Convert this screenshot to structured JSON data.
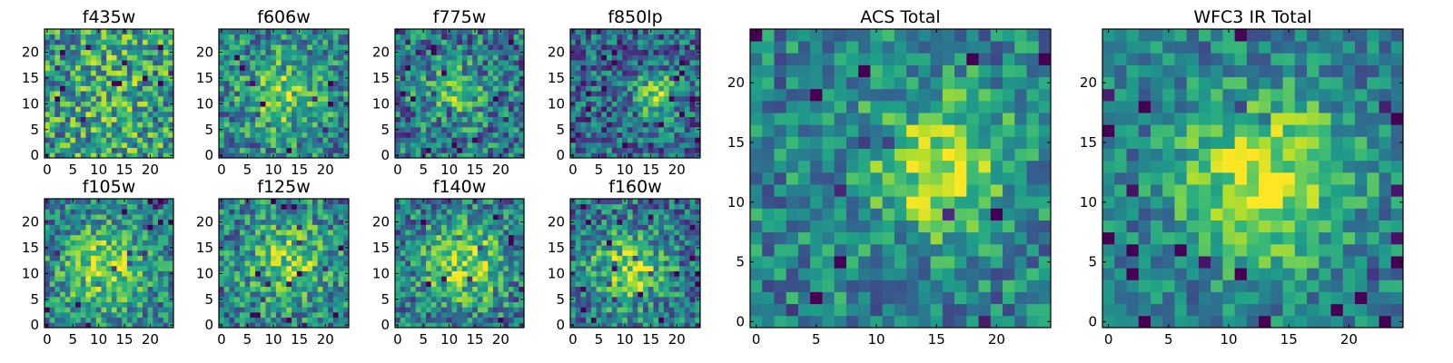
{
  "figure": {
    "colormap": "viridis"
  },
  "chart_data": [
    {
      "type": "heatmap",
      "title": "f435w",
      "xlim": [
        -0.5,
        24.5
      ],
      "ylim": [
        -0.5,
        24.5
      ],
      "xticks": [
        0,
        5,
        10,
        15,
        20
      ],
      "yticks": [
        0,
        5,
        10,
        15,
        20
      ],
      "grid": false,
      "peak": [
        12,
        12
      ],
      "sigma": 6,
      "amp": 0.1,
      "noise": 0.35,
      "bias": 0.55
    },
    {
      "type": "heatmap",
      "title": "f606w",
      "xlim": [
        -0.5,
        24.5
      ],
      "ylim": [
        -0.5,
        24.5
      ],
      "xticks": [
        0,
        5,
        10,
        15,
        20
      ],
      "yticks": [
        0,
        5,
        10,
        15,
        20
      ],
      "grid": false,
      "peak": [
        12,
        12
      ],
      "sigma": 5,
      "amp": 0.35,
      "noise": 0.3,
      "bias": 0.45
    },
    {
      "type": "heatmap",
      "title": "f775w",
      "xlim": [
        -0.5,
        24.5
      ],
      "ylim": [
        -0.5,
        24.5
      ],
      "xticks": [
        0,
        5,
        10,
        15,
        20
      ],
      "yticks": [
        0,
        5,
        10,
        15,
        20
      ],
      "grid": false,
      "peak": [
        11,
        12
      ],
      "sigma": 4,
      "amp": 0.3,
      "noise": 0.32,
      "bias": 0.4
    },
    {
      "type": "heatmap",
      "title": "f850lp",
      "xlim": [
        -0.5,
        24.5
      ],
      "ylim": [
        -0.5,
        24.5
      ],
      "xticks": [
        0,
        5,
        10,
        15,
        20
      ],
      "yticks": [
        0,
        5,
        10,
        15,
        20
      ],
      "grid": false,
      "peak": [
        16,
        12
      ],
      "sigma": 3,
      "amp": 0.45,
      "noise": 0.3,
      "bias": 0.35
    },
    {
      "type": "heatmap",
      "title": "f105w",
      "xlim": [
        -0.5,
        24.5
      ],
      "ylim": [
        -0.5,
        24.5
      ],
      "xticks": [
        0,
        5,
        10,
        15,
        20
      ],
      "yticks": [
        0,
        5,
        10,
        15,
        20
      ],
      "grid": false,
      "peak": [
        11,
        11
      ],
      "sigma": 6,
      "amp": 0.45,
      "noise": 0.28,
      "bias": 0.4
    },
    {
      "type": "heatmap",
      "title": "f125w",
      "xlim": [
        -0.5,
        24.5
      ],
      "ylim": [
        -0.5,
        24.5
      ],
      "xticks": [
        0,
        5,
        10,
        15,
        20
      ],
      "yticks": [
        0,
        5,
        10,
        15,
        20
      ],
      "grid": false,
      "peak": [
        13,
        12
      ],
      "sigma": 6,
      "amp": 0.35,
      "noise": 0.3,
      "bias": 0.42
    },
    {
      "type": "heatmap",
      "title": "f140w",
      "xlim": [
        -0.5,
        24.5
      ],
      "ylim": [
        -0.5,
        24.5
      ],
      "xticks": [
        0,
        5,
        10,
        15,
        20
      ],
      "yticks": [
        0,
        5,
        10,
        15,
        20
      ],
      "grid": false,
      "peak": [
        13,
        12
      ],
      "sigma": 6,
      "amp": 0.45,
      "noise": 0.3,
      "bias": 0.38
    },
    {
      "type": "heatmap",
      "title": "f160w",
      "xlim": [
        -0.5,
        24.5
      ],
      "ylim": [
        -0.5,
        24.5
      ],
      "xticks": [
        0,
        5,
        10,
        15,
        20
      ],
      "yticks": [
        0,
        5,
        10,
        15,
        20
      ],
      "grid": false,
      "peak": [
        11,
        11
      ],
      "sigma": 5,
      "amp": 0.45,
      "noise": 0.3,
      "bias": 0.38
    },
    {
      "type": "heatmap",
      "title": "ACS Total",
      "xlim": [
        -0.5,
        24.5
      ],
      "ylim": [
        -0.5,
        24.5
      ],
      "xticks": [
        0,
        5,
        10,
        15,
        20
      ],
      "yticks": [
        0,
        5,
        10,
        15,
        20
      ],
      "grid": false,
      "peak": [
        15,
        13
      ],
      "sigma": 4,
      "amp": 0.45,
      "noise": 0.25,
      "bias": 0.45
    },
    {
      "type": "heatmap",
      "title": "WFC3 IR Total",
      "xlim": [
        -0.5,
        24.5
      ],
      "ylim": [
        -0.5,
        24.5
      ],
      "xticks": [
        0,
        5,
        10,
        15,
        20
      ],
      "yticks": [
        0,
        5,
        10,
        15,
        20
      ],
      "grid": false,
      "peak": [
        13,
        12
      ],
      "sigma": 5,
      "amp": 0.5,
      "noise": 0.22,
      "bias": 0.42
    }
  ]
}
